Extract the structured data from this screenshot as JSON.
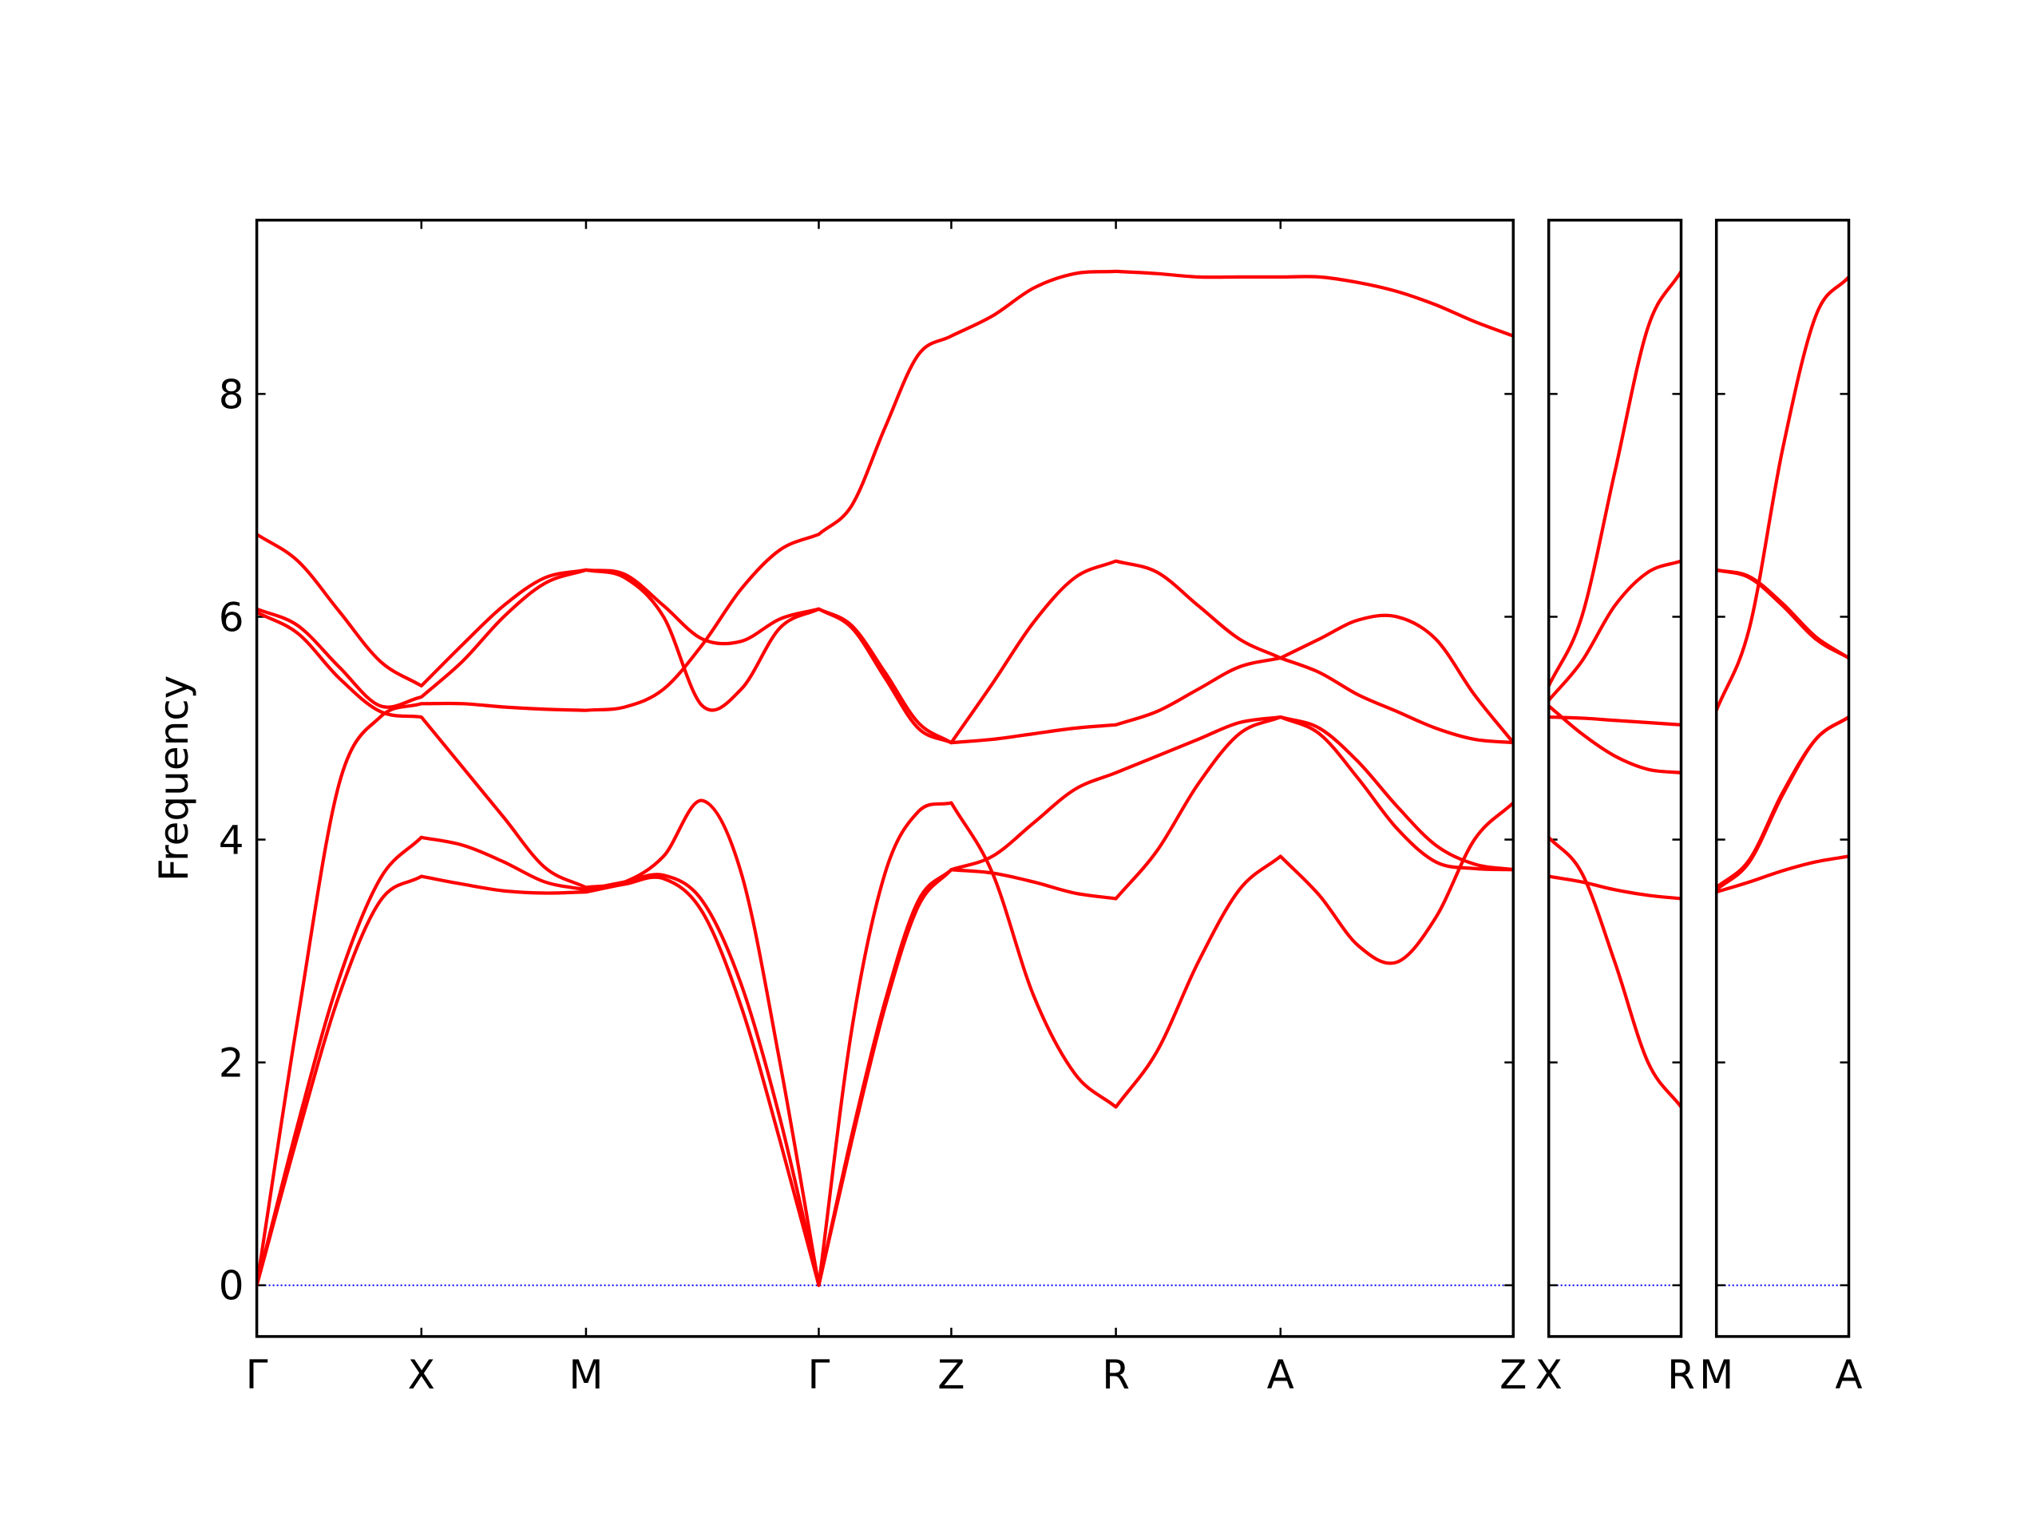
{
  "chart_data": [
    {
      "type": "line",
      "ylabel": "Frequency",
      "color": "#ff0000",
      "zero_line_color": "#0000ff",
      "xlim": [
        0,
        7.633
      ],
      "ylim": [
        -0.46,
        9.56
      ],
      "yticks": [
        0,
        2,
        4,
        6,
        8
      ],
      "xticks": [
        {
          "value": 0,
          "label": "Γ"
        },
        {
          "value": 1,
          "label": "X"
        },
        {
          "value": 2,
          "label": "M"
        },
        {
          "value": 3.414,
          "label": "Γ"
        },
        {
          "value": 4.219,
          "label": "Z"
        },
        {
          "value": 5.219,
          "label": "R"
        },
        {
          "value": 6.219,
          "label": "A"
        },
        {
          "value": 7.633,
          "label": "Z"
        }
      ],
      "x": [
        0,
        0.25,
        0.5,
        0.75,
        1,
        1.25,
        1.5,
        1.75,
        2,
        2.236,
        2.471,
        2.707,
        2.943,
        3.178,
        3.414,
        3.615,
        3.817,
        4.018,
        4.219,
        4.469,
        4.719,
        4.969,
        5.219,
        5.469,
        5.719,
        5.969,
        6.219,
        6.455,
        6.69,
        6.926,
        7.162,
        7.397,
        7.633
      ],
      "series": [
        {
          "values": [
            0,
            1.35,
            2.6,
            3.45,
            3.67,
            3.6,
            3.54,
            3.52,
            3.53,
            3.6,
            3.65,
            3.35,
            2.5,
            1.3,
            0,
            1.3,
            2.5,
            3.4,
            3.73,
            3.7,
            3.62,
            3.52,
            3.47,
            3.9,
            4.5,
            4.95,
            5.1,
            5.0,
            4.7,
            4.3,
            3.95,
            3.78,
            3.73
          ]
        },
        {
          "values": [
            0,
            1.45,
            2.75,
            3.65,
            4.02,
            3.95,
            3.8,
            3.62,
            3.55,
            3.62,
            3.68,
            3.45,
            2.7,
            1.5,
            0,
            1.35,
            2.55,
            3.45,
            3.73,
            3.85,
            4.15,
            4.45,
            4.6,
            4.75,
            4.9,
            5.05,
            5.1,
            4.95,
            4.55,
            4.1,
            3.8,
            3.74,
            3.73
          ]
        },
        {
          "values": [
            0,
            2.4,
            4.5,
            5.1,
            5.22,
            5.22,
            5.19,
            5.17,
            5.16,
            5.19,
            5.35,
            5.75,
            6.25,
            6.6,
            6.74,
            7.0,
            7.7,
            8.35,
            8.52,
            8.7,
            8.95,
            9.08,
            9.1,
            9.08,
            9.05,
            9.05,
            9.05,
            9.05,
            9.0,
            8.92,
            8.8,
            8.65,
            8.52
          ]
        },
        {
          "values": [
            6.04,
            5.85,
            5.45,
            5.15,
            5.1,
            4.65,
            4.2,
            3.75,
            3.57,
            3.62,
            3.85,
            4.35,
            3.7,
            2.0,
            0,
            2.3,
            3.7,
            4.25,
            4.33,
            3.7,
            2.6,
            1.9,
            1.6,
            2.1,
            2.9,
            3.55,
            3.85,
            3.5,
            3.05,
            2.9,
            3.3,
            4.0,
            4.33
          ]
        },
        {
          "values": [
            6.07,
            5.92,
            5.55,
            5.2,
            5.28,
            5.6,
            6.0,
            6.3,
            6.42,
            6.35,
            6.0,
            5.2,
            5.35,
            5.9,
            6.07,
            5.9,
            5.45,
            5.0,
            4.87,
            5.4,
            5.95,
            6.35,
            6.5,
            6.4,
            6.1,
            5.8,
            5.63,
            5.8,
            5.97,
            6.0,
            5.8,
            5.3,
            4.87
          ]
        },
        {
          "values": [
            6.74,
            6.5,
            6.05,
            5.6,
            5.38,
            5.75,
            6.1,
            6.35,
            6.42,
            6.38,
            6.1,
            5.8,
            5.78,
            5.98,
            6.07,
            5.92,
            5.5,
            5.05,
            4.87,
            4.9,
            4.95,
            5.0,
            5.03,
            5.15,
            5.35,
            5.55,
            5.63,
            5.5,
            5.3,
            5.15,
            5.0,
            4.9,
            4.87
          ]
        }
      ]
    },
    {
      "type": "line",
      "color": "#ff0000",
      "zero_line_color": "#0000ff",
      "xlim": [
        0,
        0.805
      ],
      "ylim": [
        -0.46,
        9.56
      ],
      "xticks": [
        {
          "value": 0,
          "label": "X"
        },
        {
          "value": 0.805,
          "label": "R"
        }
      ],
      "x": [
        0,
        0.201,
        0.402,
        0.604,
        0.805
      ],
      "series": [
        {
          "values": [
            5.38,
            6.0,
            7.3,
            8.6,
            9.1
          ]
        },
        {
          "values": [
            5.25,
            5.6,
            6.1,
            6.4,
            6.5
          ]
        },
        {
          "values": [
            5.1,
            5.09,
            5.07,
            5.05,
            5.03
          ]
        },
        {
          "values": [
            5.2,
            4.95,
            4.75,
            4.63,
            4.6
          ]
        },
        {
          "values": [
            4.02,
            3.7,
            2.9,
            2.0,
            1.6
          ]
        },
        {
          "values": [
            3.67,
            3.62,
            3.55,
            3.5,
            3.47
          ]
        }
      ]
    },
    {
      "type": "line",
      "color": "#ff0000",
      "zero_line_color": "#0000ff",
      "xlim": [
        0,
        0.805
      ],
      "ylim": [
        -0.46,
        9.56
      ],
      "xticks": [
        {
          "value": 0,
          "label": "M"
        },
        {
          "value": 0.805,
          "label": "A"
        }
      ],
      "x": [
        0,
        0.201,
        0.402,
        0.604,
        0.805
      ],
      "series": [
        {
          "values": [
            6.42,
            6.35,
            6.1,
            5.8,
            5.63
          ]
        },
        {
          "values": [
            6.42,
            6.36,
            6.12,
            5.82,
            5.63
          ]
        },
        {
          "values": [
            5.16,
            5.9,
            7.5,
            8.7,
            9.05
          ]
        },
        {
          "values": [
            3.57,
            3.82,
            4.42,
            4.9,
            5.1
          ]
        },
        {
          "values": [
            3.55,
            3.8,
            4.4,
            4.9,
            5.1
          ]
        },
        {
          "values": [
            3.53,
            3.62,
            3.72,
            3.8,
            3.85
          ]
        }
      ]
    }
  ]
}
